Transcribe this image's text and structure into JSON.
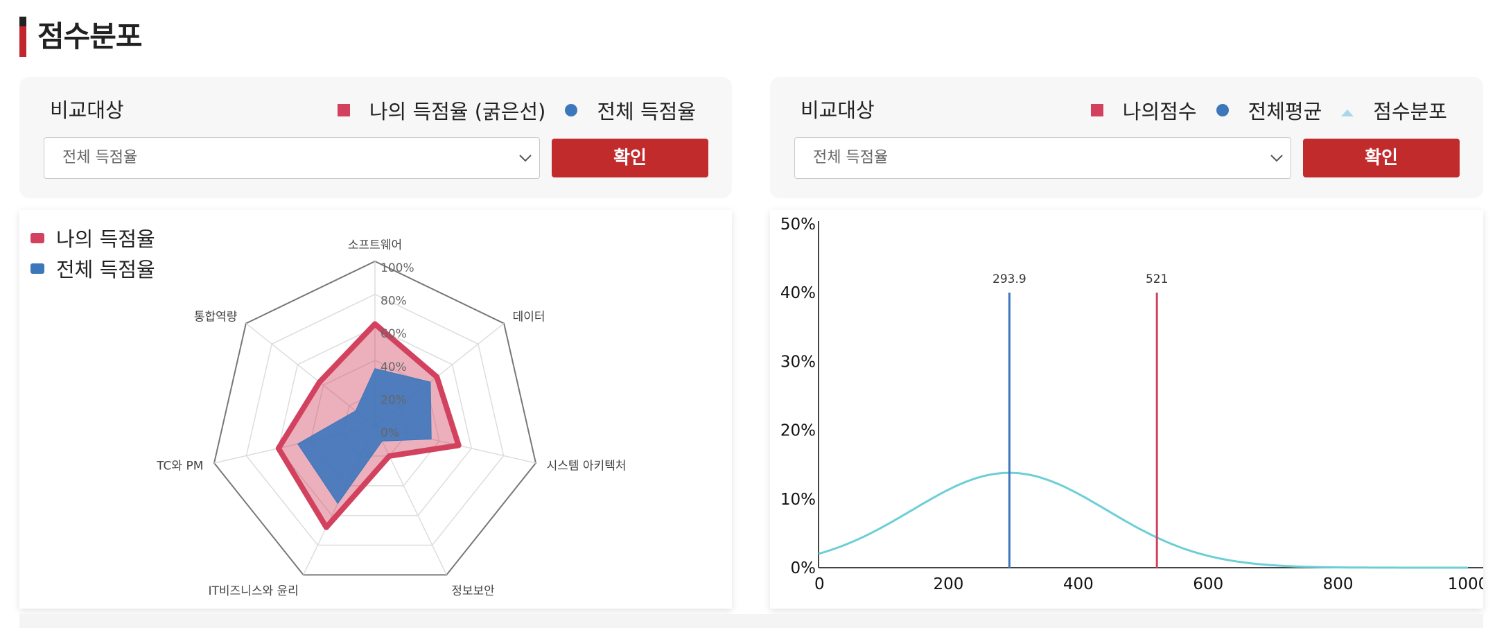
{
  "section": {
    "title": "점수분포"
  },
  "left_panel": {
    "compare_label": "비교대상",
    "legend": {
      "mine": "나의 득점율 (굵은선)",
      "overall": "전체 득점율"
    },
    "select_value": "전체 득점율",
    "confirm_label": "확인"
  },
  "right_panel": {
    "compare_label": "비교대상",
    "legend": {
      "mine": "나의점수",
      "average": "전체평균",
      "distribution": "점수분포"
    },
    "select_value": "전체 득점율",
    "confirm_label": "확인"
  },
  "colors": {
    "mine": "#d2425f",
    "overall": "#3d77bb",
    "distribution": "#6ccfd6",
    "accent": "#c12b2c"
  },
  "chart_data": [
    {
      "type": "radar",
      "categories": [
        "소프트웨어",
        "데이터",
        "시스템 아키텍처",
        "정보보안",
        "IT비즈니스와 윤리",
        "TC와 PM",
        "통합역량"
      ],
      "r_tick_labels": [
        "100%",
        "80%",
        "60%",
        "40%",
        "20%",
        "0%"
      ],
      "rlim": [
        0,
        100
      ],
      "legend": {
        "position": "top-left"
      },
      "series": [
        {
          "name": "나의 득점율",
          "values": [
            62,
            48,
            52,
            20,
            68,
            60,
            43
          ]
        },
        {
          "name": "전체 득점율",
          "values": [
            35,
            43,
            35,
            10,
            52,
            48,
            15
          ]
        }
      ]
    },
    {
      "type": "line",
      "x_ticks": [
        0,
        200,
        400,
        600,
        800,
        1000
      ],
      "y_ticks": [
        "0%",
        "10%",
        "20%",
        "30%",
        "40%",
        "50%"
      ],
      "xlim": [
        0,
        1000
      ],
      "ylim": [
        0,
        50
      ],
      "distribution": {
        "mean": 293.9,
        "sd": 150,
        "peak_percent": 13.8
      },
      "markers": [
        {
          "name": "전체평균",
          "x": 293.9,
          "label": "293.9",
          "y": 40
        },
        {
          "name": "나의점수",
          "x": 521,
          "label": "521",
          "y": 40
        }
      ]
    }
  ]
}
